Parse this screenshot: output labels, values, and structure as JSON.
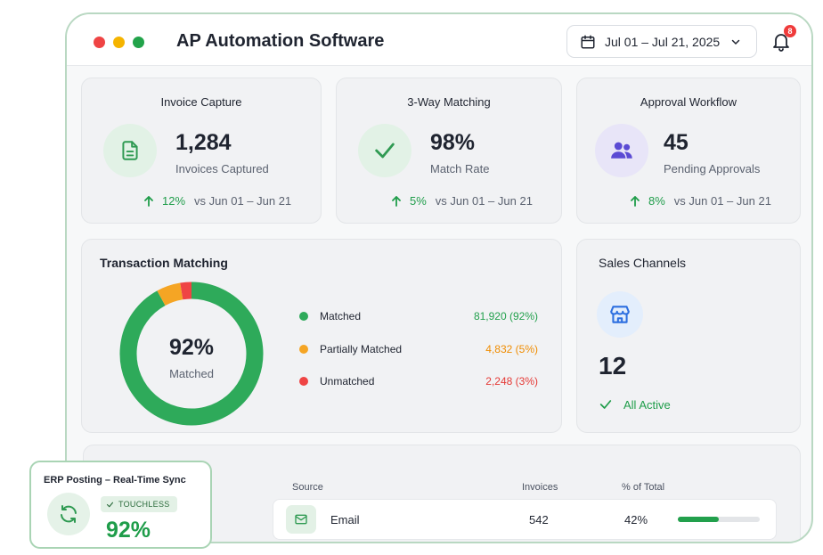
{
  "app": {
    "title": "AP Automation Software"
  },
  "header": {
    "date_range": "Jul 01 – Jul 21, 2025",
    "notification_count": "8"
  },
  "kpis": [
    {
      "title": "Invoice Capture",
      "value": "1,284",
      "subtitle": "Invoices Captured",
      "change": "12%",
      "compare": "vs Jun 01 – Jun 21",
      "icon": "document-icon",
      "icon_color": "#2f9a52",
      "icon_bg": "#e2f2e6"
    },
    {
      "title": "3-Way Matching",
      "value": "98%",
      "subtitle": "Match Rate",
      "change": "5%",
      "compare": "vs Jun 01 – Jun 21",
      "icon": "check-icon",
      "icon_color": "#2f9a52",
      "icon_bg": "#e2f2e6"
    },
    {
      "title": "Approval Workflow",
      "value": "45",
      "subtitle": "Pending Approvals",
      "change": "8%",
      "compare": "vs Jun 01 – Jun 21",
      "icon": "users-icon",
      "icon_color": "#5b4bd4",
      "icon_bg": "#e8e5f8"
    }
  ],
  "transaction_matching": {
    "title": "Transaction Matching",
    "center_value": "92%",
    "center_label": "Matched",
    "items": [
      {
        "label": "Matched",
        "value": "81,920 (92%)",
        "color": "#2eaa5a",
        "value_color": "#22a04c"
      },
      {
        "label": "Partially Matched",
        "value": "4,832 (5%)",
        "color": "#f5a524",
        "value_color": "#f08c00"
      },
      {
        "label": "Unmatched",
        "value": "2,248 (3%)",
        "color": "#ef4444",
        "value_color": "#e53935"
      }
    ]
  },
  "chart_data": {
    "type": "pie",
    "categories": [
      "Matched",
      "Partially Matched",
      "Unmatched"
    ],
    "values": [
      81920,
      4832,
      2248
    ],
    "percent": [
      92,
      5,
      3
    ],
    "title": "Transaction Matching"
  },
  "sales_channels": {
    "title": "Sales Channels",
    "value": "12",
    "status": "All Active",
    "icon": "store-icon"
  },
  "table": {
    "columns": [
      "Source",
      "Invoices",
      "% of Total"
    ],
    "rows": [
      {
        "source": "Email",
        "invoices": "542",
        "percent": "42%",
        "progress": 0.5,
        "icon": "mail-icon"
      }
    ]
  },
  "erp_card": {
    "title": "ERP Posting – Real-Time Sync",
    "badge": "TOUCHLESS",
    "value": "92%",
    "icon": "sync-icon"
  },
  "colors": {
    "accent_green": "#22a04c",
    "border_green": "#a9d4b4"
  }
}
